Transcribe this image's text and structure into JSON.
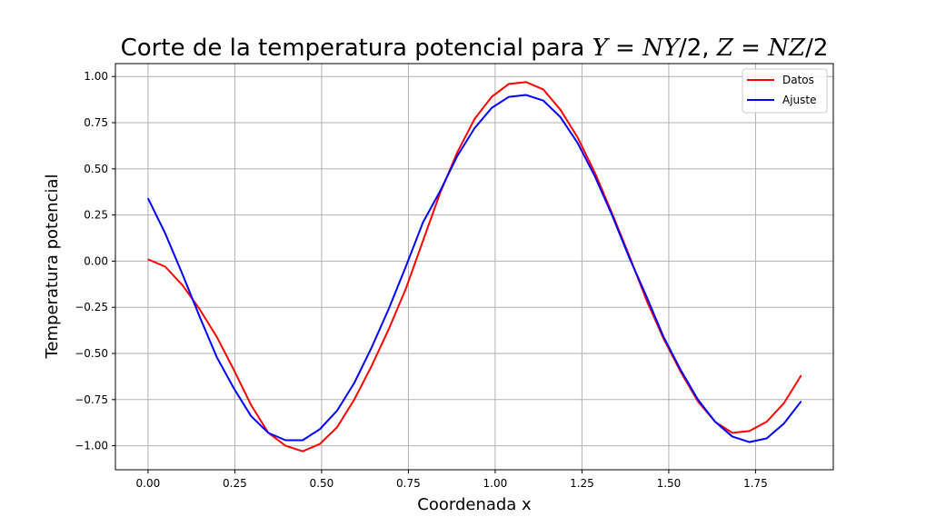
{
  "chart_data": {
    "type": "line",
    "title": "Corte de la temperatura potencial para Y = NY/2, Z = NZ/2",
    "xlabel": "Coordenada x",
    "ylabel": "Temperatura potencial",
    "xlim": [
      -0.094,
      1.974
    ],
    "ylim": [
      -1.13,
      1.07
    ],
    "xticks": [
      0.0,
      0.25,
      0.5,
      0.75,
      1.0,
      1.25,
      1.5,
      1.75
    ],
    "xtick_labels": [
      "0.00",
      "0.25",
      "0.50",
      "0.75",
      "1.00",
      "1.25",
      "1.50",
      "1.75"
    ],
    "yticks": [
      -1.0,
      -0.75,
      -0.5,
      -0.25,
      0.0,
      0.25,
      0.5,
      0.75,
      1.0
    ],
    "ytick_labels": [
      "−1.00",
      "−0.75",
      "−0.50",
      "−0.25",
      "0.00",
      "0.25",
      "0.50",
      "0.75",
      "1.00"
    ],
    "grid": true,
    "legend_position": "top-right",
    "x": [
      0.0,
      0.0495,
      0.099,
      0.1485,
      0.198,
      0.2475,
      0.297,
      0.3465,
      0.396,
      0.4455,
      0.495,
      0.5445,
      0.594,
      0.6435,
      0.693,
      0.7425,
      0.792,
      0.8415,
      0.891,
      0.9405,
      0.99,
      1.0395,
      1.089,
      1.1385,
      1.188,
      1.2375,
      1.287,
      1.3365,
      1.386,
      1.4355,
      1.485,
      1.5345,
      1.584,
      1.6335,
      1.683,
      1.7325,
      1.782,
      1.8315,
      1.881
    ],
    "series": [
      {
        "name": "Datos",
        "color": "#ff0000",
        "values": [
          0.01,
          -0.03,
          -0.13,
          -0.26,
          -0.41,
          -0.59,
          -0.78,
          -0.93,
          -1.0,
          -1.03,
          -0.99,
          -0.9,
          -0.75,
          -0.57,
          -0.37,
          -0.15,
          0.11,
          0.37,
          0.59,
          0.77,
          0.89,
          0.96,
          0.97,
          0.93,
          0.82,
          0.67,
          0.48,
          0.26,
          0.03,
          -0.21,
          -0.42,
          -0.6,
          -0.76,
          -0.87,
          -0.93,
          -0.92,
          -0.87,
          -0.77,
          -0.62
        ]
      },
      {
        "name": "Ajuste",
        "color": "#0000ff",
        "values": [
          0.34,
          0.15,
          -0.07,
          -0.3,
          -0.52,
          -0.69,
          -0.84,
          -0.93,
          -0.97,
          -0.97,
          -0.91,
          -0.81,
          -0.66,
          -0.47,
          -0.26,
          -0.03,
          0.21,
          0.38,
          0.57,
          0.72,
          0.83,
          0.89,
          0.9,
          0.87,
          0.78,
          0.64,
          0.46,
          0.25,
          0.02,
          -0.19,
          -0.41,
          -0.59,
          -0.75,
          -0.87,
          -0.95,
          -0.98,
          -0.96,
          -0.88,
          -0.76
        ]
      }
    ]
  }
}
